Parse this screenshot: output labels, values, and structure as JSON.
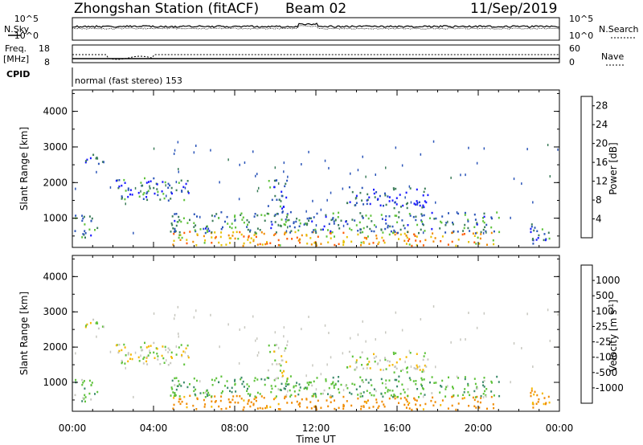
{
  "header": {
    "station_title": "Zhongshan Station (fitACF)",
    "beam_label": "Beam 02",
    "date_label": "11/Sep/2019"
  },
  "top_panel": {
    "left_label": "N.Sky",
    "right_label": "N.Search",
    "left_ticks": [
      "10^5",
      "10^0"
    ],
    "right_ticks": [
      "10^5",
      "10^0"
    ]
  },
  "freq_panel": {
    "left_label_line1": "Freq.",
    "left_label_line2": "[MHz]",
    "left_ticks": [
      "18",
      "8"
    ],
    "right_label": "Nave",
    "right_ticks": [
      "60",
      "0"
    ]
  },
  "cpid": {
    "label": "CPID",
    "program_text": "normal (fast stereo) 153"
  },
  "chart_data": [
    {
      "type": "heatmap",
      "panel": "power",
      "ylabel": "Slant Range [km]",
      "yticks": [
        "1000",
        "2000",
        "3000",
        "4000"
      ],
      "ylim": [
        180,
        4600
      ],
      "xlim_hours": [
        0,
        24
      ],
      "colorbar_label": "Power [dB]",
      "colorbar_ticks": [
        "4",
        "8",
        "12",
        "16",
        "20",
        "24",
        "28"
      ],
      "colorbar_range": [
        0,
        30
      ],
      "colors": [
        "#1a1aff",
        "#2b55b8",
        "#3c7d5a",
        "#5ec23a",
        "#e6c000",
        "#f08a00",
        "#ff5a00",
        "#e00000"
      ],
      "echo_regions": [
        {
          "x": [
            0.3,
            1.5
          ],
          "range": [
            2550,
            2850
          ],
          "value": 6
        },
        {
          "x": [
            2.0,
            5.8
          ],
          "range": [
            1500,
            2150
          ],
          "value": 7
        },
        {
          "x": [
            0.1,
            1.2
          ],
          "range": [
            400,
            1100
          ],
          "value": 8
        },
        {
          "x": [
            4.8,
            21.0
          ],
          "range": [
            250,
            650
          ],
          "value": 20
        },
        {
          "x": [
            4.8,
            21.0
          ],
          "range": [
            600,
            1200
          ],
          "value": 9
        },
        {
          "x": [
            9.6,
            10.6
          ],
          "range": [
            1100,
            2200
          ],
          "value": 7
        },
        {
          "x": [
            13.5,
            17.5
          ],
          "range": [
            1300,
            1900
          ],
          "value": 5
        },
        {
          "x": [
            22.5,
            23.7
          ],
          "range": [
            300,
            900
          ],
          "value": 6
        }
      ]
    },
    {
      "type": "heatmap",
      "panel": "velocity",
      "ylabel": "Slant Range [km]",
      "yticks": [
        "1000",
        "2000",
        "3000",
        "4000"
      ],
      "ylim": [
        180,
        4600
      ],
      "xlim_hours": [
        0,
        24
      ],
      "xlabel": "Time UT",
      "xticks": [
        "00:00",
        "04:00",
        "08:00",
        "12:00",
        "16:00",
        "20:00",
        "00:00"
      ],
      "colorbar_label": "Velocity [m s",
      "colorbar_label_sup": "-1",
      "colorbar_label_end": "]",
      "colorbar_ticks": [
        "1000",
        "500",
        "100",
        "25",
        "-25",
        "-100",
        "-500",
        "-1000"
      ],
      "colors": [
        "#1a3cc8",
        "#2b6aa0",
        "#3a8a6a",
        "#5ec23a",
        "#c8c8c0",
        "#f5b800",
        "#f08a00",
        "#ff5a00",
        "#e00000"
      ],
      "echo_regions": [
        {
          "x": [
            0.3,
            1.5
          ],
          "range": [
            2550,
            2850
          ],
          "value": 0
        },
        {
          "x": [
            2.0,
            5.8
          ],
          "range": [
            1500,
            2150
          ],
          "value": 0
        },
        {
          "x": [
            0.1,
            1.2
          ],
          "range": [
            400,
            1100
          ],
          "value": 60
        },
        {
          "x": [
            4.8,
            21.0
          ],
          "range": [
            250,
            650
          ],
          "value": -150
        },
        {
          "x": [
            4.8,
            21.0
          ],
          "range": [
            600,
            1200
          ],
          "value": 80
        },
        {
          "x": [
            9.6,
            10.6
          ],
          "range": [
            1100,
            2200
          ],
          "value": 0
        },
        {
          "x": [
            13.5,
            17.5
          ],
          "range": [
            1300,
            1900
          ],
          "value": 0
        },
        {
          "x": [
            22.5,
            23.7
          ],
          "range": [
            300,
            900
          ],
          "value": -120
        }
      ]
    }
  ]
}
